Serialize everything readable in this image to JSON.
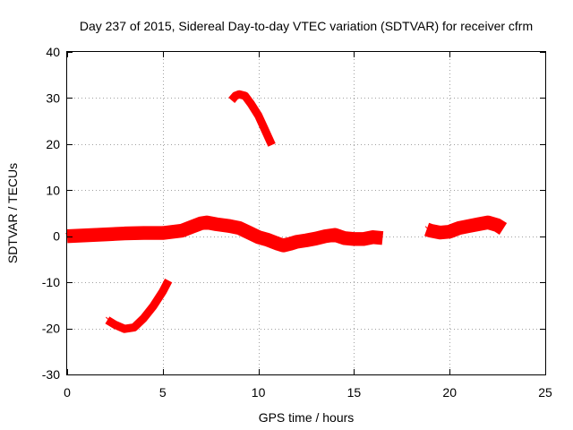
{
  "chart_data": {
    "type": "line",
    "title": "Day 237 of 2015, Sidereal Day-to-day VTEC variation (SDTVAR) for receiver cfrm",
    "xlabel": "GPS time / hours",
    "ylabel": "SDTVAR / TECUs",
    "xlim": [
      0,
      25
    ],
    "ylim": [
      -30,
      40
    ],
    "xticks": [
      0,
      5,
      10,
      15,
      20,
      25
    ],
    "yticks": [
      -30,
      -20,
      -10,
      0,
      10,
      20,
      30,
      40
    ],
    "grid": true,
    "series_color": "#ff0000",
    "series": [
      {
        "name": "main-trace-1",
        "band": 1.2,
        "points": [
          [
            0,
            0
          ],
          [
            1,
            0.2
          ],
          [
            2,
            0.4
          ],
          [
            3,
            0.6
          ],
          [
            4,
            0.7
          ],
          [
            5,
            0.7
          ],
          [
            6,
            1.2
          ],
          [
            6.5,
            2.0
          ],
          [
            7,
            2.8
          ],
          [
            7.3,
            3.0
          ],
          [
            7.8,
            2.6
          ],
          [
            8.5,
            2.2
          ],
          [
            9,
            1.8
          ],
          [
            9.5,
            0.8
          ],
          [
            10,
            -0.2
          ],
          [
            10.5,
            -0.8
          ],
          [
            11,
            -1.6
          ],
          [
            11.3,
            -2.0
          ],
          [
            11.7,
            -1.6
          ],
          [
            12,
            -1.2
          ],
          [
            12.5,
            -0.9
          ],
          [
            13,
            -0.5
          ],
          [
            13.5,
            0
          ],
          [
            14,
            0.3
          ],
          [
            14.5,
            -0.4
          ],
          [
            15,
            -0.6
          ],
          [
            15.5,
            -0.6
          ],
          [
            16,
            -0.2
          ],
          [
            16.5,
            -0.4
          ]
        ]
      },
      {
        "name": "main-trace-2",
        "band": 1.2,
        "points": [
          [
            18.8,
            1.5
          ],
          [
            19,
            1.2
          ],
          [
            19.5,
            0.8
          ],
          [
            20,
            1.0
          ],
          [
            20.5,
            1.8
          ],
          [
            21,
            2.2
          ],
          [
            21.5,
            2.6
          ],
          [
            22,
            3.0
          ],
          [
            22.5,
            2.4
          ],
          [
            22.8,
            1.6
          ]
        ]
      },
      {
        "name": "upper-arc",
        "band": 0.6,
        "points": [
          [
            8.6,
            29.5
          ],
          [
            8.8,
            30.5
          ],
          [
            9,
            30.8
          ],
          [
            9.3,
            30.5
          ],
          [
            9.6,
            28.8
          ],
          [
            10,
            26.2
          ],
          [
            10.3,
            23.5
          ],
          [
            10.7,
            19.8
          ]
        ]
      },
      {
        "name": "lower-arc",
        "band": 0.6,
        "points": [
          [
            2.1,
            -18.2
          ],
          [
            2.5,
            -19.2
          ],
          [
            3,
            -20.1
          ],
          [
            3.5,
            -19.8
          ],
          [
            4,
            -17.8
          ],
          [
            4.5,
            -15.2
          ],
          [
            5,
            -12.0
          ],
          [
            5.3,
            -9.6
          ]
        ]
      }
    ]
  }
}
